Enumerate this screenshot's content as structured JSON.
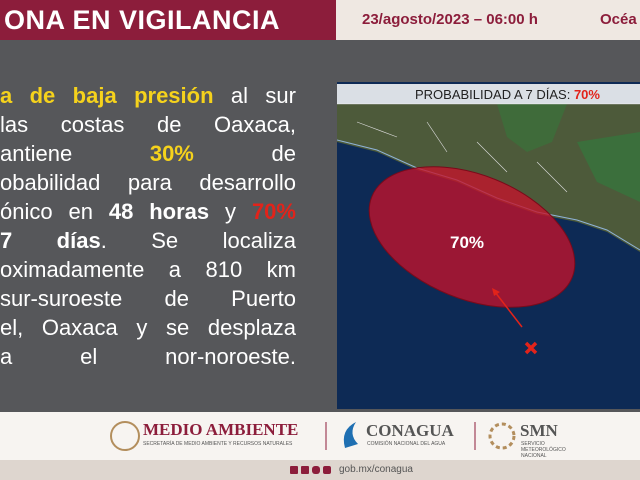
{
  "header": {
    "title": "ONA EN VIGILANCIA",
    "datetime": "23/agosto/2023 – 06:00 h",
    "region": "Océa"
  },
  "paragraph": {
    "lines": [
      [
        {
          "text": "a de baja presión",
          "color": "#f5d21c"
        },
        {
          "text": " al sur",
          "color": "#ffffff"
        }
      ],
      [
        {
          "text": "las costas de Oaxaca,",
          "color": "#ffffff"
        }
      ],
      [
        {
          "text": "antiene ",
          "color": "#ffffff"
        },
        {
          "text": "30%",
          "color": "#f5d21c"
        },
        {
          "text": " de",
          "color": "#ffffff"
        }
      ],
      [
        {
          "text": "obabilidad para desarrollo",
          "color": "#ffffff"
        }
      ],
      [
        {
          "text": "ónico en ",
          "color": "#ffffff"
        },
        {
          "text": "48 horas",
          "color": "#ffffff",
          "bold": true
        },
        {
          "text": " y ",
          "color": "#ffffff"
        },
        {
          "text": "70%",
          "color": "#e2231a"
        }
      ],
      [
        {
          "text": "7 días",
          "color": "#ffffff",
          "bold": true
        },
        {
          "text": ". Se localiza",
          "color": "#ffffff"
        }
      ],
      [
        {
          "text": "oximadamente a 810 km",
          "color": "#ffffff"
        }
      ],
      [
        {
          "text": "sur-suroeste de Puerto",
          "color": "#ffffff"
        }
      ],
      [
        {
          "text": "el, Oaxaca y se desplaza",
          "color": "#ffffff"
        }
      ],
      [
        {
          "text": "a el nor-noroeste.",
          "color": "#ffffff"
        }
      ]
    ]
  },
  "map": {
    "header_label": "PROBABILIDAD A 7 DÍAS: ",
    "header_value": "70%",
    "area_label": "70%"
  },
  "footer": {
    "semarnat": "MEDIO AMBIENTE",
    "semarnat_sub": "SECRETARÍA DE MEDIO AMBIENTE Y RECURSOS NATURALES",
    "conagua": "CONAGUA",
    "conagua_sub": "COMISIÓN NACIONAL DEL AGUA",
    "smn": "SMN",
    "smn_sub": "SERVICIO METEOROLÓGICO NACIONAL",
    "url": "gob.mx/conagua"
  }
}
